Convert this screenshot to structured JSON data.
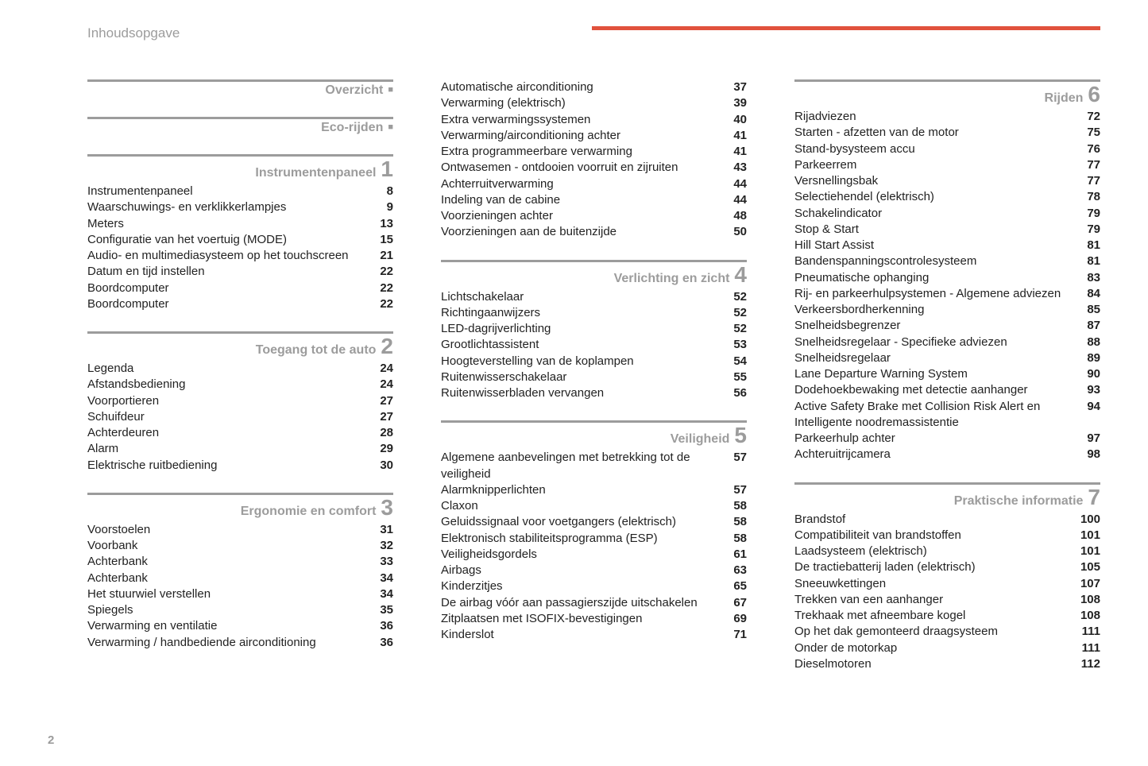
{
  "header": "Inhoudsopgave",
  "page_number": "2",
  "columns": [
    {
      "sections": [
        {
          "title": "Overzicht",
          "marker": "■",
          "entries": []
        },
        {
          "title": "Eco-rijden",
          "marker": "■",
          "entries": []
        },
        {
          "title": "Instrumentenpaneel",
          "num": "1",
          "entries": [
            {
              "label": "Instrumentenpaneel",
              "page": "8"
            },
            {
              "label": "Waarschuwings- en verklikkerlampjes",
              "page": "9"
            },
            {
              "label": "Meters",
              "page": "13"
            },
            {
              "label": "Configuratie van het voertuig (MODE)",
              "page": "15"
            },
            {
              "label": "Audio- en multimediasysteem op het touchscreen",
              "page": "21"
            },
            {
              "label": "Datum en tijd instellen",
              "page": "22"
            },
            {
              "label": "Boordcomputer",
              "page": "22"
            },
            {
              "label": "Boordcomputer",
              "page": "22"
            }
          ]
        },
        {
          "title": "Toegang tot de auto",
          "num": "2",
          "entries": [
            {
              "label": "Legenda",
              "page": "24"
            },
            {
              "label": "Afstandsbediening",
              "page": "24"
            },
            {
              "label": "Voorportieren",
              "page": "27"
            },
            {
              "label": "Schuifdeur",
              "page": "27"
            },
            {
              "label": "Achterdeuren",
              "page": "28"
            },
            {
              "label": "Alarm",
              "page": "29"
            },
            {
              "label": "Elektrische ruitbediening",
              "page": "30"
            }
          ]
        },
        {
          "title": "Ergonomie en comfort",
          "num": "3",
          "entries": [
            {
              "label": "Voorstoelen",
              "page": "31"
            },
            {
              "label": "Voorbank",
              "page": "32"
            },
            {
              "label": "Achterbank",
              "page": "33"
            },
            {
              "label": "Achterbank",
              "page": "34"
            },
            {
              "label": "Het stuurwiel verstellen",
              "page": "34"
            },
            {
              "label": "Spiegels",
              "page": "35"
            },
            {
              "label": "Verwarming en ventilatie",
              "page": "36"
            },
            {
              "label": "Verwarming / handbediende airconditioning",
              "page": "36"
            }
          ]
        }
      ]
    },
    {
      "sections": [
        {
          "continues": true,
          "entries": [
            {
              "label": "Automatische airconditioning",
              "page": "37"
            },
            {
              "label": "Verwarming (elektrisch)",
              "page": "39"
            },
            {
              "label": "Extra verwarmingssystemen",
              "page": "40"
            },
            {
              "label": "Verwarming/airconditioning achter",
              "page": "41"
            },
            {
              "label": "Extra programmeerbare verwarming",
              "page": "41"
            },
            {
              "label": "Ontwasemen - ontdooien voorruit en zijruiten",
              "page": "43"
            },
            {
              "label": "Achterruitverwarming",
              "page": "44"
            },
            {
              "label": "Indeling van de cabine",
              "page": "44"
            },
            {
              "label": "Voorzieningen achter",
              "page": "48"
            },
            {
              "label": "Voorzieningen aan de buitenzijde",
              "page": "50"
            }
          ]
        },
        {
          "title": "Verlichting en zicht",
          "num": "4",
          "entries": [
            {
              "label": "Lichtschakelaar",
              "page": "52"
            },
            {
              "label": "Richtingaanwijzers",
              "page": "52"
            },
            {
              "label": "LED-dagrijverlichting",
              "page": "52"
            },
            {
              "label": "Grootlichtassistent",
              "page": "53"
            },
            {
              "label": "Hoogteverstelling van de koplampen",
              "page": "54"
            },
            {
              "label": "Ruitenwisserschakelaar",
              "page": "55"
            },
            {
              "label": "Ruitenwisserbladen vervangen",
              "page": "56"
            }
          ]
        },
        {
          "title": "Veiligheid",
          "num": "5",
          "entries": [
            {
              "label": "Algemene aanbevelingen met betrekking tot de veiligheid",
              "page": "57"
            },
            {
              "label": "Alarmknipperlichten",
              "page": "57"
            },
            {
              "label": "Claxon",
              "page": "58"
            },
            {
              "label": "Geluidssignaal voor voetgangers (elektrisch)",
              "page": "58"
            },
            {
              "label": "Elektronisch stabiliteitsprogramma (ESP)",
              "page": "58"
            },
            {
              "label": "Veiligheidsgordels",
              "page": "61"
            },
            {
              "label": "Airbags",
              "page": "63"
            },
            {
              "label": "Kinderzitjes",
              "page": "65"
            },
            {
              "label": "De airbag vóór aan passagierszijde uitschakelen",
              "page": "67"
            },
            {
              "label": "Zitplaatsen met ISOFIX-bevestigingen",
              "page": "69"
            },
            {
              "label": "Kinderslot",
              "page": "71"
            }
          ]
        }
      ]
    },
    {
      "sections": [
        {
          "title": "Rijden",
          "num": "6",
          "entries": [
            {
              "label": "Rijadviezen",
              "page": "72"
            },
            {
              "label": "Starten - afzetten van de motor",
              "page": "75"
            },
            {
              "label": "Stand-bysysteem accu",
              "page": "76"
            },
            {
              "label": "Parkeerrem",
              "page": "77"
            },
            {
              "label": "Versnellingsbak",
              "page": "77"
            },
            {
              "label": "Selectiehendel (elektrisch)",
              "page": "78"
            },
            {
              "label": "Schakelindicator",
              "page": "79"
            },
            {
              "label": "Stop & Start",
              "page": "79"
            },
            {
              "label": "Hill Start Assist",
              "page": "81"
            },
            {
              "label": "Bandenspanningscontrolesysteem",
              "page": "81"
            },
            {
              "label": "Pneumatische ophanging",
              "page": "83"
            },
            {
              "label": "Rij- en parkeerhulpsystemen - Algemene adviezen",
              "page": "84"
            },
            {
              "label": "Verkeersbordherkenning",
              "page": "85"
            },
            {
              "label": "Snelheidsbegrenzer",
              "page": "87"
            },
            {
              "label": "Snelheidsregelaar - Specifieke adviezen",
              "page": "88"
            },
            {
              "label": "Snelheidsregelaar",
              "page": "89"
            },
            {
              "label": "Lane Departure Warning System",
              "page": "90"
            },
            {
              "label": "Dodehoekbewaking met detectie aanhanger",
              "page": "93"
            },
            {
              "label": "Active Safety Brake met Collision Risk Alert en Intelligente noodremassistentie",
              "page": "94"
            },
            {
              "label": "Parkeerhulp achter",
              "page": "97"
            },
            {
              "label": "Achteruitrijcamera",
              "page": "98"
            }
          ]
        },
        {
          "title": "Praktische informatie",
          "num": "7",
          "entries": [
            {
              "label": "Brandstof",
              "page": "100"
            },
            {
              "label": "Compatibiliteit van brandstoffen",
              "page": "101"
            },
            {
              "label": "Laadsysteem (elektrisch)",
              "page": "101"
            },
            {
              "label": "De tractiebatterij laden (elektrisch)",
              "page": "105"
            },
            {
              "label": "Sneeuwkettingen",
              "page": "107"
            },
            {
              "label": "Trekken van een aanhanger",
              "page": "108"
            },
            {
              "label": "Trekhaak met afneembare kogel",
              "page": "108"
            },
            {
              "label": "Op het dak gemonteerd draagsysteem",
              "page": "111"
            },
            {
              "label": "Onder de motorkap",
              "page": "111"
            },
            {
              "label": "Dieselmotoren",
              "page": "112"
            }
          ]
        }
      ]
    }
  ]
}
